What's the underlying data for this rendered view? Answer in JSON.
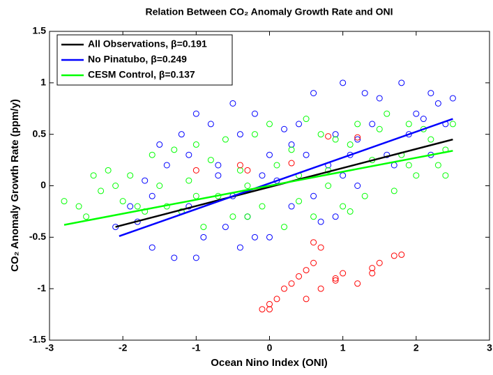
{
  "chart_data": {
    "type": "scatter",
    "title": "Relation Between CO₂ Anomaly Growth Rate and ONI",
    "x_label": "Ocean Nino Index (ONI)",
    "y_label": "CO₂ Anomaly Growth Rate (ppm/y)",
    "xlim": [
      -3,
      3
    ],
    "xticks": [
      -3,
      -2,
      -1,
      0,
      1,
      2,
      3
    ],
    "ylim": [
      -1.5,
      1.5
    ],
    "yticks": [
      -1.5,
      -1,
      -0.5,
      0,
      0.5,
      1,
      1.5
    ],
    "legend": "upper-left",
    "series": [
      {
        "name": "All Observations, β=0.191",
        "color": "#000000",
        "x": [
          -2.1,
          2.5
        ],
        "values": [
          -0.4,
          0.45
        ]
      },
      {
        "name": "No Pinatubo, β=0.249",
        "color": "#0000ff",
        "x": [
          -2.05,
          2.5
        ],
        "values": [
          -0.49,
          0.65
        ]
      },
      {
        "name": "CESM Control, β=0.137",
        "color": "#00ff00",
        "x": [
          -2.8,
          2.5
        ],
        "values": [
          -0.38,
          0.34
        ]
      }
    ],
    "scatter": [
      {
        "color": "#0000ff",
        "x": [
          -2.1,
          -1.9,
          -1.8,
          -1.7,
          -1.6,
          -1.5,
          -1.4,
          -1.3,
          -1.2,
          -1.1,
          -1.0,
          -1.0,
          -0.9,
          -0.8,
          -0.7,
          -0.6,
          -0.5,
          -0.5,
          -0.4,
          -0.3,
          -0.2,
          -0.1,
          0.0,
          0.0,
          0.1,
          0.2,
          0.3,
          0.4,
          0.5,
          0.6,
          0.7,
          0.8,
          0.9,
          1.0,
          1.0,
          1.1,
          1.2,
          1.3,
          1.4,
          1.5,
          1.6,
          1.8,
          1.9,
          2.0,
          2.1,
          2.2,
          2.3,
          2.4,
          2.5,
          -1.1,
          -0.7,
          -0.4,
          0.6,
          1.2,
          1.7,
          2.2,
          -1.6,
          -0.2,
          0.3,
          0.9
        ],
        "values": [
          -0.4,
          -0.2,
          -0.35,
          0.05,
          -0.6,
          0.4,
          0.2,
          -0.7,
          0.5,
          0.3,
          -0.7,
          0.7,
          -0.5,
          0.6,
          0.1,
          -0.4,
          0.8,
          -0.1,
          0.5,
          -0.3,
          0.7,
          0.1,
          -0.5,
          0.3,
          0.05,
          0.55,
          -0.2,
          0.6,
          0.3,
          0.9,
          -0.35,
          0.2,
          0.5,
          1.0,
          0.1,
          0.3,
          0.45,
          0.9,
          0.6,
          0.85,
          0.3,
          1.0,
          0.5,
          0.7,
          0.65,
          0.3,
          0.8,
          0.6,
          0.85,
          -0.2,
          0.2,
          -0.6,
          -0.1,
          0.0,
          0.2,
          0.9,
          -0.1,
          -0.5,
          0.4,
          -0.3
        ]
      },
      {
        "color": "#00ff00",
        "x": [
          -2.8,
          -2.6,
          -2.5,
          -2.4,
          -2.3,
          -2.2,
          -2.0,
          -1.9,
          -1.8,
          -1.6,
          -1.5,
          -1.4,
          -1.3,
          -1.2,
          -1.1,
          -1.0,
          -0.9,
          -0.8,
          -0.7,
          -0.6,
          -0.5,
          -0.4,
          -0.3,
          -0.2,
          -0.1,
          0.0,
          0.1,
          0.2,
          0.3,
          0.4,
          0.5,
          0.6,
          0.7,
          0.8,
          0.9,
          1.0,
          1.1,
          1.2,
          1.3,
          1.4,
          1.5,
          1.6,
          1.7,
          1.8,
          1.9,
          2.0,
          2.1,
          2.2,
          2.3,
          2.4,
          2.5,
          -2.1,
          -1.7,
          -1.0,
          -0.3,
          0.4,
          1.1,
          1.9,
          2.4,
          0.8
        ],
        "values": [
          -0.15,
          -0.2,
          -0.3,
          0.1,
          -0.05,
          0.15,
          -0.15,
          0.1,
          -0.2,
          0.3,
          0.0,
          -0.2,
          0.35,
          -0.25,
          0.05,
          0.4,
          -0.4,
          0.25,
          -0.1,
          0.45,
          -0.3,
          0.15,
          0.0,
          0.5,
          -0.2,
          0.6,
          0.2,
          -0.4,
          0.35,
          0.1,
          0.65,
          -0.3,
          0.5,
          0.0,
          0.45,
          -0.2,
          0.4,
          0.6,
          -0.1,
          0.25,
          0.55,
          0.7,
          -0.05,
          0.3,
          0.6,
          0.1,
          0.55,
          0.45,
          0.2,
          0.1,
          0.6,
          0.0,
          -0.25,
          -0.1,
          -0.3,
          -0.15,
          -0.25,
          0.2,
          0.35,
          0.15
        ]
      },
      {
        "color": "#ff0000",
        "x": [
          -0.1,
          0.0,
          0.0,
          0.1,
          0.2,
          0.3,
          0.4,
          0.5,
          0.6,
          0.6,
          0.7,
          0.5,
          0.7,
          0.9,
          0.9,
          1.0,
          1.2,
          1.4,
          1.5,
          1.7,
          1.8,
          1.4,
          -0.3,
          -0.4,
          0.8,
          1.2,
          0.3,
          -1.0
        ],
        "values": [
          -1.2,
          -1.2,
          -1.15,
          -1.1,
          -1.0,
          -0.95,
          -0.88,
          -0.82,
          -0.75,
          -0.55,
          -0.6,
          -1.1,
          -1.0,
          -0.9,
          -0.92,
          -0.85,
          -0.95,
          -0.8,
          -0.75,
          -0.68,
          -0.67,
          -0.85,
          0.15,
          0.2,
          0.48,
          0.47,
          0.22,
          0.15
        ]
      }
    ]
  }
}
